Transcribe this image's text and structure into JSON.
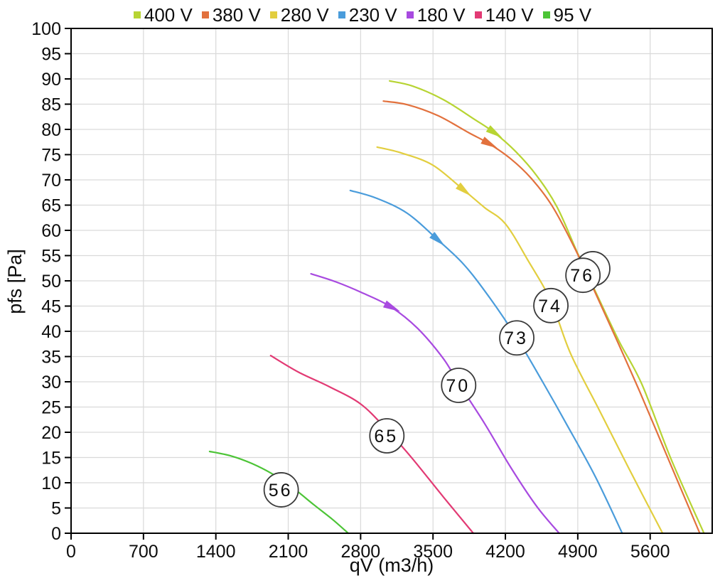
{
  "chart_data": {
    "type": "line",
    "title": "",
    "xlabel": "qV (m3/h)",
    "ylabel": "pfs [Pa]",
    "xlim": [
      0,
      6200
    ],
    "ylim": [
      0,
      100
    ],
    "x_ticks": [
      0,
      700,
      1400,
      2100,
      2800,
      3500,
      4200,
      4900,
      5600
    ],
    "y_tick_step": 5,
    "y_grid_step": 5,
    "grid": true,
    "legend_position": "top",
    "grid_color": "#d9d9d9",
    "frame_color": "#000000",
    "series": [
      {
        "name": "400 V",
        "color": "#b7d433",
        "arrow_at": 4090,
        "points": [
          [
            3080,
            89.6
          ],
          [
            3300,
            88.6
          ],
          [
            3600,
            85.9
          ],
          [
            3900,
            82.0
          ],
          [
            4090,
            79.4
          ],
          [
            4300,
            75.6
          ],
          [
            4500,
            70.9
          ],
          [
            4700,
            64.6
          ],
          [
            4900,
            55.4
          ],
          [
            5100,
            46.6
          ],
          [
            5300,
            38.0
          ],
          [
            5520,
            29.5
          ],
          [
            5800,
            14.8
          ],
          [
            6120,
            0
          ]
        ]
      },
      {
        "name": "380 V",
        "color": "#e2713d",
        "arrow_at": 4040,
        "points": [
          [
            3020,
            85.6
          ],
          [
            3250,
            84.9
          ],
          [
            3550,
            82.7
          ],
          [
            3850,
            79.3
          ],
          [
            4040,
            77.2
          ],
          [
            4250,
            74.2
          ],
          [
            4450,
            70.3
          ],
          [
            4650,
            64.9
          ],
          [
            4870,
            56.5
          ],
          [
            5050,
            48.5
          ],
          [
            5250,
            39.5
          ],
          [
            5500,
            28.0
          ],
          [
            5800,
            13.5
          ],
          [
            6080,
            0
          ]
        ]
      },
      {
        "name": "280 V",
        "color": "#e2ce3f",
        "arrow_at": 3796,
        "points": [
          [
            2960,
            76.5
          ],
          [
            3200,
            75.3
          ],
          [
            3500,
            72.9
          ],
          [
            3796,
            68.0
          ],
          [
            4000,
            64.5
          ],
          [
            4200,
            61.3
          ],
          [
            4420,
            54.0
          ],
          [
            4640,
            46.0
          ],
          [
            4830,
            35.6
          ],
          [
            5100,
            24.7
          ],
          [
            5400,
            12.6
          ],
          [
            5720,
            0
          ]
        ]
      },
      {
        "name": "230 V",
        "color": "#4a9cdb",
        "arrow_at": 3542,
        "points": [
          [
            2700,
            67.9
          ],
          [
            2950,
            66.4
          ],
          [
            3250,
            63.4
          ],
          [
            3542,
            58.2
          ],
          [
            3800,
            53.2
          ],
          [
            4050,
            46.6
          ],
          [
            4310,
            38.7
          ],
          [
            4560,
            30.0
          ],
          [
            4800,
            21.3
          ],
          [
            5070,
            11.2
          ],
          [
            5330,
            0
          ]
        ]
      },
      {
        "name": "180 V",
        "color": "#a84ae0",
        "arrow_at": 3096,
        "points": [
          [
            2320,
            51.4
          ],
          [
            2560,
            49.8
          ],
          [
            2830,
            47.5
          ],
          [
            3096,
            44.8
          ],
          [
            3350,
            40.6
          ],
          [
            3600,
            34.6
          ],
          [
            3750,
            29.6
          ],
          [
            4000,
            21.7
          ],
          [
            4250,
            13.1
          ],
          [
            4500,
            5.4
          ],
          [
            4720,
            0
          ]
        ]
      },
      {
        "name": "140 V",
        "color": "#e23a74",
        "arrow_at": null,
        "points": [
          [
            1930,
            35.2
          ],
          [
            2200,
            31.9
          ],
          [
            2500,
            29.0
          ],
          [
            2800,
            25.6
          ],
          [
            3054,
            20.5
          ],
          [
            3300,
            14.8
          ],
          [
            3600,
            7.2
          ],
          [
            3890,
            0
          ]
        ]
      },
      {
        "name": "95 V",
        "color": "#4cc436",
        "arrow_at": null,
        "points": [
          [
            1340,
            16.2
          ],
          [
            1550,
            15.3
          ],
          [
            1750,
            13.8
          ],
          [
            1950,
            11.7
          ],
          [
            2150,
            8.9
          ],
          [
            2350,
            5.6
          ],
          [
            2530,
            2.7
          ],
          [
            2680,
            0
          ]
        ]
      }
    ],
    "point_labels": [
      {
        "text": "",
        "qv": 5045,
        "pfs": 52.4
      },
      {
        "text": "76",
        "qv": 4950,
        "pfs": 51.1
      },
      {
        "text": "74",
        "qv": 4640,
        "pfs": 45.1
      },
      {
        "text": "73",
        "qv": 4310,
        "pfs": 38.7
      },
      {
        "text": "70",
        "qv": 3748,
        "pfs": 29.3
      },
      {
        "text": "65",
        "qv": 3054,
        "pfs": 19.3
      },
      {
        "text": "56",
        "qv": 2032,
        "pfs": 8.6
      }
    ]
  }
}
